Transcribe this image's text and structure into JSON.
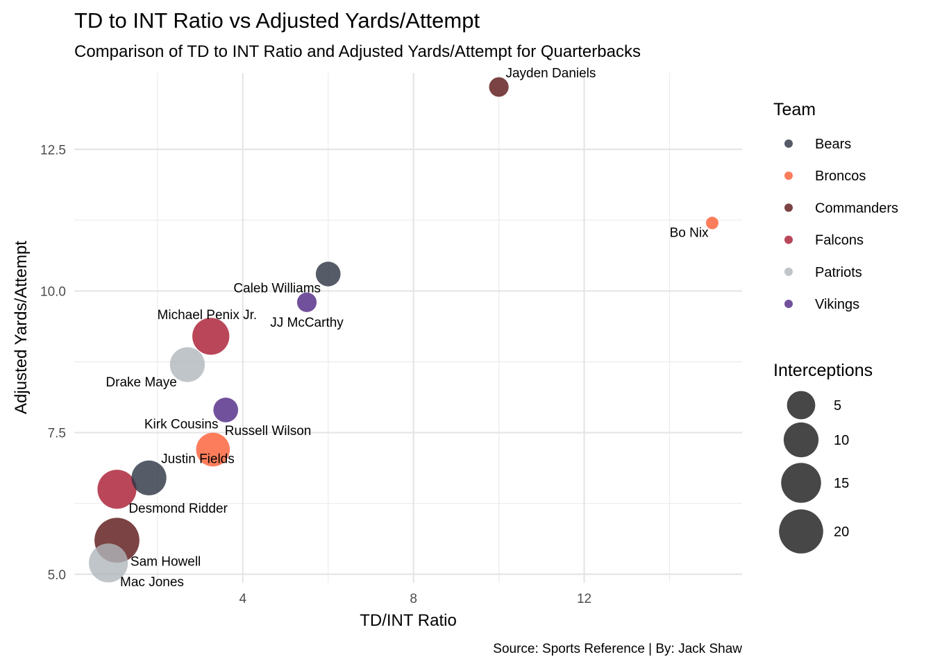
{
  "chart_data": {
    "type": "scatter",
    "title": "TD to INT Ratio vs Adjusted Yards/Attempt",
    "subtitle": "Comparison of TD to INT Ratio and Adjusted Yards/Attempt for Quarterbacks",
    "xlabel": "TD/INT Ratio",
    "ylabel": "Adjusted Yards/Attempt",
    "caption": "Source: Sports Reference | By: Jack Shaw",
    "xlim": [
      0.05,
      15.7
    ],
    "ylim": [
      4.85,
      13.85
    ],
    "x_ticks": [
      4,
      8,
      12
    ],
    "x_tick_labels": [
      "4",
      "8",
      "12"
    ],
    "x_minor_ticks": [
      2,
      6,
      10,
      14
    ],
    "y_ticks": [
      5.0,
      7.5,
      10.0,
      12.5
    ],
    "y_tick_labels": [
      "5.0",
      "7.5",
      "10.0",
      "12.5"
    ],
    "y_minor_ticks": [
      6.25,
      8.75,
      11.25
    ],
    "grid": true,
    "legend_placement": "right",
    "team_legend": {
      "title": "Team",
      "entries": [
        {
          "name": "Bears",
          "color": "#2b3241"
        },
        {
          "name": "Broncos",
          "color": "#fb5c33"
        },
        {
          "name": "Commanders",
          "color": "#5a1414"
        },
        {
          "name": "Falcons",
          "color": "#a71930"
        },
        {
          "name": "Patriots",
          "color": "#b0b7bc"
        },
        {
          "name": "Vikings",
          "color": "#4f2683"
        }
      ]
    },
    "size_legend": {
      "title": "Interceptions",
      "values": [
        5,
        10,
        15,
        20
      ],
      "labels": [
        "5",
        "10",
        "15",
        "20"
      ]
    },
    "points": [
      {
        "name": "Jayden Daniels",
        "team": "Commanders",
        "x": 10.0,
        "y": 13.6,
        "interceptions": 1,
        "label_pos": "above-right"
      },
      {
        "name": "Bo Nix",
        "team": "Broncos",
        "x": 15.0,
        "y": 11.2,
        "interceptions": 0,
        "label_pos": "below-left"
      },
      {
        "name": "Caleb Williams",
        "team": "Bears",
        "x": 6.0,
        "y": 10.3,
        "interceptions": 3,
        "label_pos": "below-left"
      },
      {
        "name": "JJ McCarthy",
        "team": "Vikings",
        "x": 5.5,
        "y": 9.8,
        "interceptions": 1,
        "label_pos": "below"
      },
      {
        "name": "Michael Penix Jr.",
        "team": "Falcons",
        "x": 3.25,
        "y": 9.2,
        "interceptions": 12,
        "label_pos": "above-left"
      },
      {
        "name": "Drake Maye",
        "team": "Patriots",
        "x": 2.7,
        "y": 8.7,
        "interceptions": 10,
        "label_pos": "below-left"
      },
      {
        "name": "Kirk Cousins",
        "team": "Vikings",
        "x": 3.6,
        "y": 7.9,
        "interceptions": 3,
        "label_pos": "below-left"
      },
      {
        "name": "Russell Wilson",
        "team": "Broncos",
        "x": 3.3,
        "y": 7.2,
        "interceptions": 9,
        "label_pos": "above-right"
      },
      {
        "name": "Justin Fields",
        "team": "Bears",
        "x": 1.8,
        "y": 6.7,
        "interceptions": 10,
        "label_pos": "above-right"
      },
      {
        "name": "Desmond Ridder",
        "team": "Falcons",
        "x": 1.05,
        "y": 6.5,
        "interceptions": 14,
        "label_pos": "below-right"
      },
      {
        "name": "Sam Howell",
        "team": "Commanders",
        "x": 1.05,
        "y": 5.6,
        "interceptions": 21,
        "label_pos": "below-right"
      },
      {
        "name": "Mac Jones",
        "team": "Patriots",
        "x": 0.85,
        "y": 5.2,
        "interceptions": 14,
        "label_pos": "below-right"
      }
    ]
  }
}
